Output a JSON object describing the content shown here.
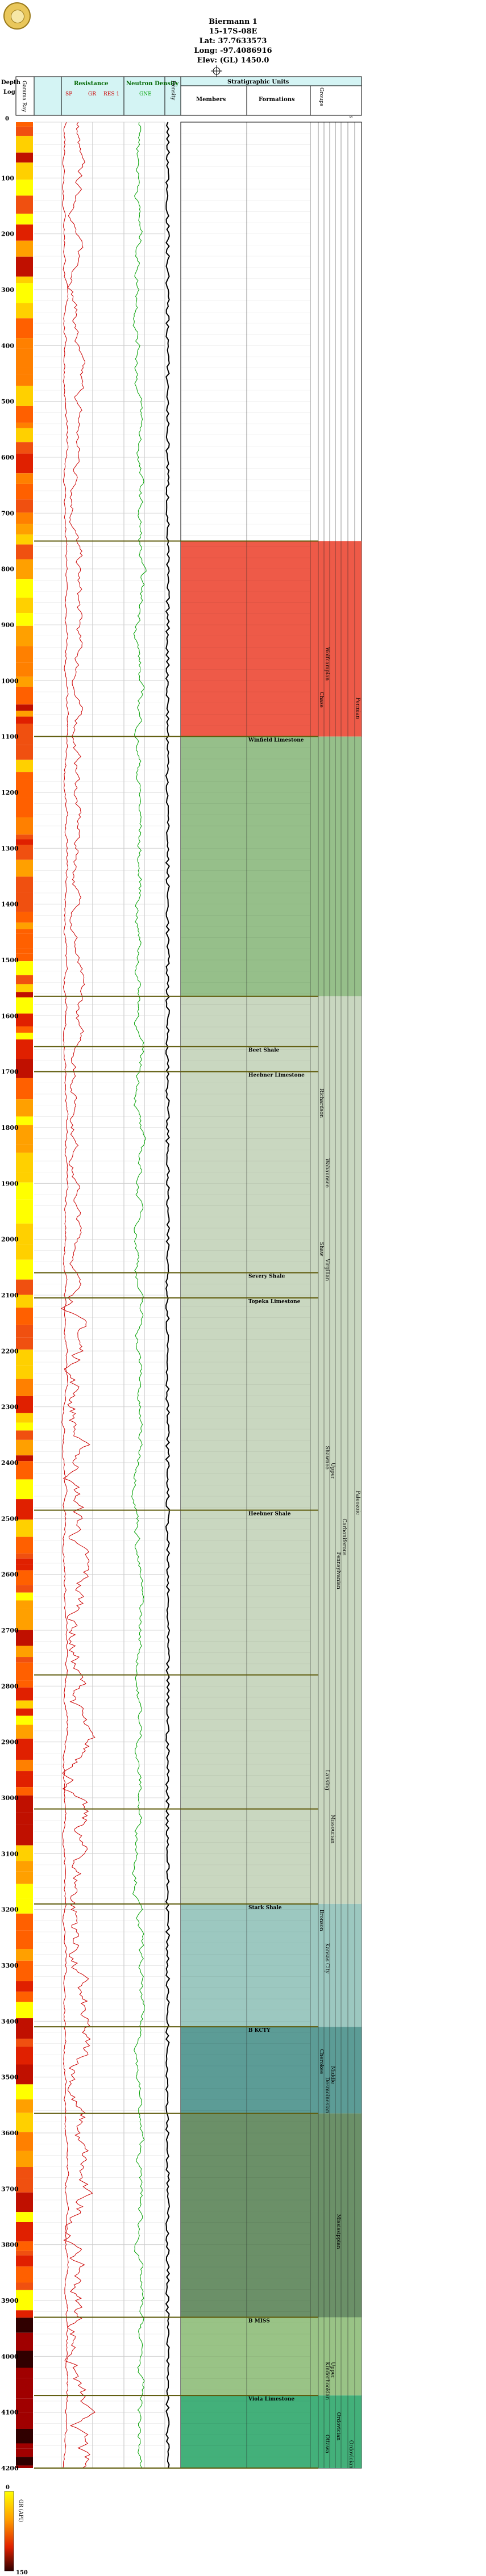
{
  "well": {
    "name": "Biermann 1",
    "location": "15-17S-08E",
    "lat": "Lat: 37.7633573",
    "long": "Long: -97.4086916",
    "elev": "Elev: (GL) 1450.0"
  },
  "headers": {
    "depth": "Depth",
    "log": "Log",
    "depth_zero": "0",
    "gr_column": "Gamma Ray",
    "resistance": "Resistance",
    "resistance_curves": [
      "SP",
      "GR",
      "RES 1"
    ],
    "neutron_density": "Neutron Density",
    "neutron_curve": "GNE",
    "density": "Density",
    "strat_units": "Stratigraphic Units",
    "members": "Members",
    "formations": "Formations",
    "hierarchy": [
      "Groups",
      "Subgroups",
      "Series",
      "Subseries",
      "Systems",
      "Subsystems",
      "Erathems"
    ]
  },
  "legend": {
    "scale_top": "0",
    "scale_label": "GR (API)",
    "scale_bottom": "150"
  },
  "colors": {
    "red_unit": "#ee5a48",
    "green_unit": "#96bf8a",
    "pale_unit": "#c9d7c0",
    "teal_unit": "#9cc8c0",
    "dark_teal": "#5c9c96",
    "dark_green": "#6b9068",
    "olive_green": "#99c386",
    "emerald": "#43b07a",
    "header_cyan": "#d4f4f4",
    "curve_red": "#cc0000",
    "curve_green": "#00a000",
    "boundary": "#5e5a0a"
  },
  "chart_data": {
    "type": "well-log",
    "depth_range": [
      0,
      4200
    ],
    "depth_ticks": [
      100,
      200,
      300,
      400,
      500,
      600,
      700,
      800,
      900,
      1000,
      1100,
      1200,
      1300,
      1400,
      1500,
      1600,
      1700,
      1800,
      1900,
      2000,
      2100,
      2200,
      2300,
      2400,
      2500,
      2600,
      2700,
      2800,
      2900,
      3000,
      3100,
      3200,
      3300,
      3400,
      3500,
      3600,
      3700,
      3800,
      3900,
      4000,
      4100,
      4200
    ],
    "boundaries": [
      750,
      1100,
      1565,
      1655,
      1700,
      2060,
      2105,
      2485,
      2780,
      3020,
      3190,
      3410,
      3565,
      3930,
      4070,
      4200
    ],
    "members": [
      {
        "depth": 1100,
        "label": "Winfield Limestone"
      },
      {
        "depth": 1655,
        "label": "Beet Shale"
      },
      {
        "depth": 1700,
        "label": "Heebner Limestone"
      },
      {
        "depth": 2060,
        "label": "Severy Shale"
      },
      {
        "depth": 2105,
        "label": "Topeka Limestone"
      },
      {
        "depth": 2485,
        "label": "Heebner Shale"
      },
      {
        "depth": 3190,
        "label": "Stark Shale"
      },
      {
        "depth": 3410,
        "label": "B KCTY"
      },
      {
        "depth": 3930,
        "label": "B MISS"
      },
      {
        "depth": 4070,
        "label": "Viola Limestone"
      }
    ],
    "units": [
      {
        "top": 750,
        "bottom": 1100,
        "color": "#ee5a48",
        "label": "Chase"
      },
      {
        "top": 1100,
        "bottom": 1565,
        "color": "#96bf8a",
        "label": ""
      },
      {
        "top": 1565,
        "bottom": 3190,
        "color": "#c9d7c0",
        "label": ""
      },
      {
        "top": 3190,
        "bottom": 3410,
        "color": "#9cc8c0",
        "label": ""
      },
      {
        "top": 3410,
        "bottom": 3565,
        "color": "#5c9c96",
        "label": ""
      },
      {
        "top": 3565,
        "bottom": 3930,
        "color": "#6b9068",
        "label": ""
      },
      {
        "top": 3930,
        "bottom": 4070,
        "color": "#99c386",
        "label": ""
      },
      {
        "top": 4070,
        "bottom": 4200,
        "color": "#43b07a",
        "label": ""
      }
    ],
    "hierarchy_labels": [
      {
        "col": 0,
        "depth": 1020,
        "label": "Chase"
      },
      {
        "col": 1,
        "depth": 940,
        "label": "Wolfcampian"
      },
      {
        "col": 1,
        "depth": 1855,
        "label": "Wabaunsee"
      },
      {
        "col": 0,
        "depth": 1730,
        "label": "Richardson"
      },
      {
        "col": 1,
        "depth": 2035,
        "label": "Virgilian"
      },
      {
        "col": 0,
        "depth": 2005,
        "label": "Shaw"
      },
      {
        "col": 1,
        "depth": 2370,
        "label": "Shawnee"
      },
      {
        "col": 2,
        "depth": 2400,
        "label": "Upper"
      },
      {
        "col": 3,
        "depth": 2560,
        "label": "Pennsylvanian"
      },
      {
        "col": 4,
        "depth": 2500,
        "label": "Carboniferous"
      },
      {
        "col": 6,
        "depth": 2450,
        "label": "Paleozoic"
      },
      {
        "col": 6,
        "depth": 1030,
        "label": "Permian"
      },
      {
        "col": 1,
        "depth": 2950,
        "label": "Lansing"
      },
      {
        "col": 2,
        "depth": 3030,
        "label": "Missourian"
      },
      {
        "col": 1,
        "depth": 3260,
        "label": "Kansas City"
      },
      {
        "col": 0,
        "depth": 3200,
        "label": "Bronson"
      },
      {
        "col": 2,
        "depth": 3480,
        "label": "Middle"
      },
      {
        "col": 1,
        "depth": 3500,
        "label": "Desmoinesian"
      },
      {
        "col": 0,
        "depth": 3450,
        "label": "Cherokee"
      },
      {
        "col": 3,
        "depth": 3745,
        "label": "Mississippian"
      },
      {
        "col": 1,
        "depth": 4010,
        "label": "Kinderhookian"
      },
      {
        "col": 2,
        "depth": 4010,
        "label": "Upper"
      },
      {
        "col": 3,
        "depth": 4100,
        "label": "Ordovician"
      },
      {
        "col": 5,
        "depth": 4150,
        "label": "Ordovician"
      },
      {
        "col": 1,
        "depth": 4140,
        "label": "Ottawa"
      }
    ],
    "series": [
      {
        "name": "GR",
        "color": "#cc0000"
      },
      {
        "name": "GNE",
        "color": "#00a000"
      }
    ]
  }
}
